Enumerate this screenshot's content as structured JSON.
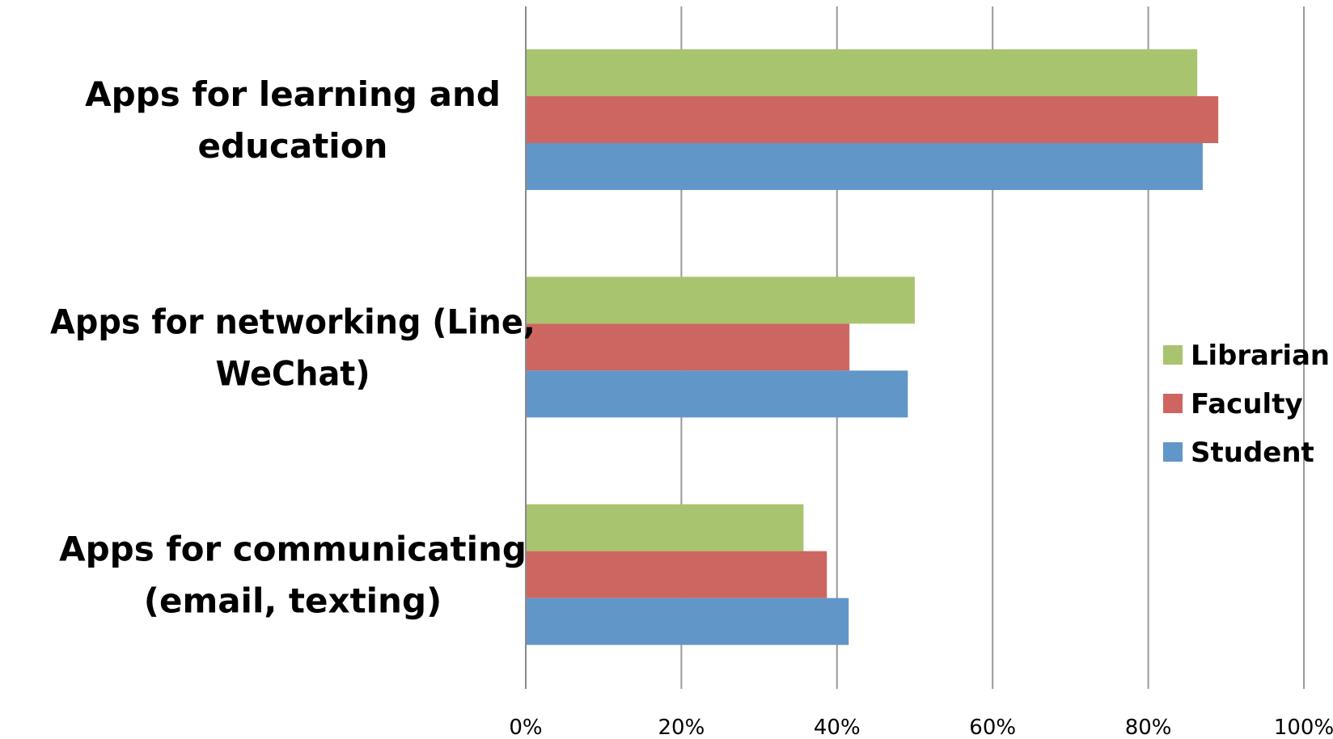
{
  "chart_data": {
    "type": "bar",
    "orientation": "horizontal",
    "title": "",
    "xlabel": "",
    "ylabel": "",
    "xlim": [
      0,
      100
    ],
    "ticks": [
      "0%",
      "20%",
      "40%",
      "60%",
      "80%",
      "100%"
    ],
    "tick_values": [
      0,
      20,
      40,
      60,
      80,
      100
    ],
    "grid": true,
    "legend_position": "right",
    "categories": [
      [
        "Apps for learning and",
        "education"
      ],
      [
        "Apps for networking (Line,",
        "WeChat)"
      ],
      [
        "Apps for communicating",
        "(email, texting)"
      ]
    ],
    "series": [
      {
        "name": "Librarian",
        "color": "#A9C46E",
        "values": [
          86.3,
          50.0,
          35.7
        ]
      },
      {
        "name": "Faculty",
        "color": "#CD6660",
        "values": [
          89.0,
          41.6,
          38.7
        ]
      },
      {
        "name": "Student",
        "color": "#6196C8",
        "values": [
          87.0,
          49.1,
          41.5
        ]
      }
    ]
  }
}
